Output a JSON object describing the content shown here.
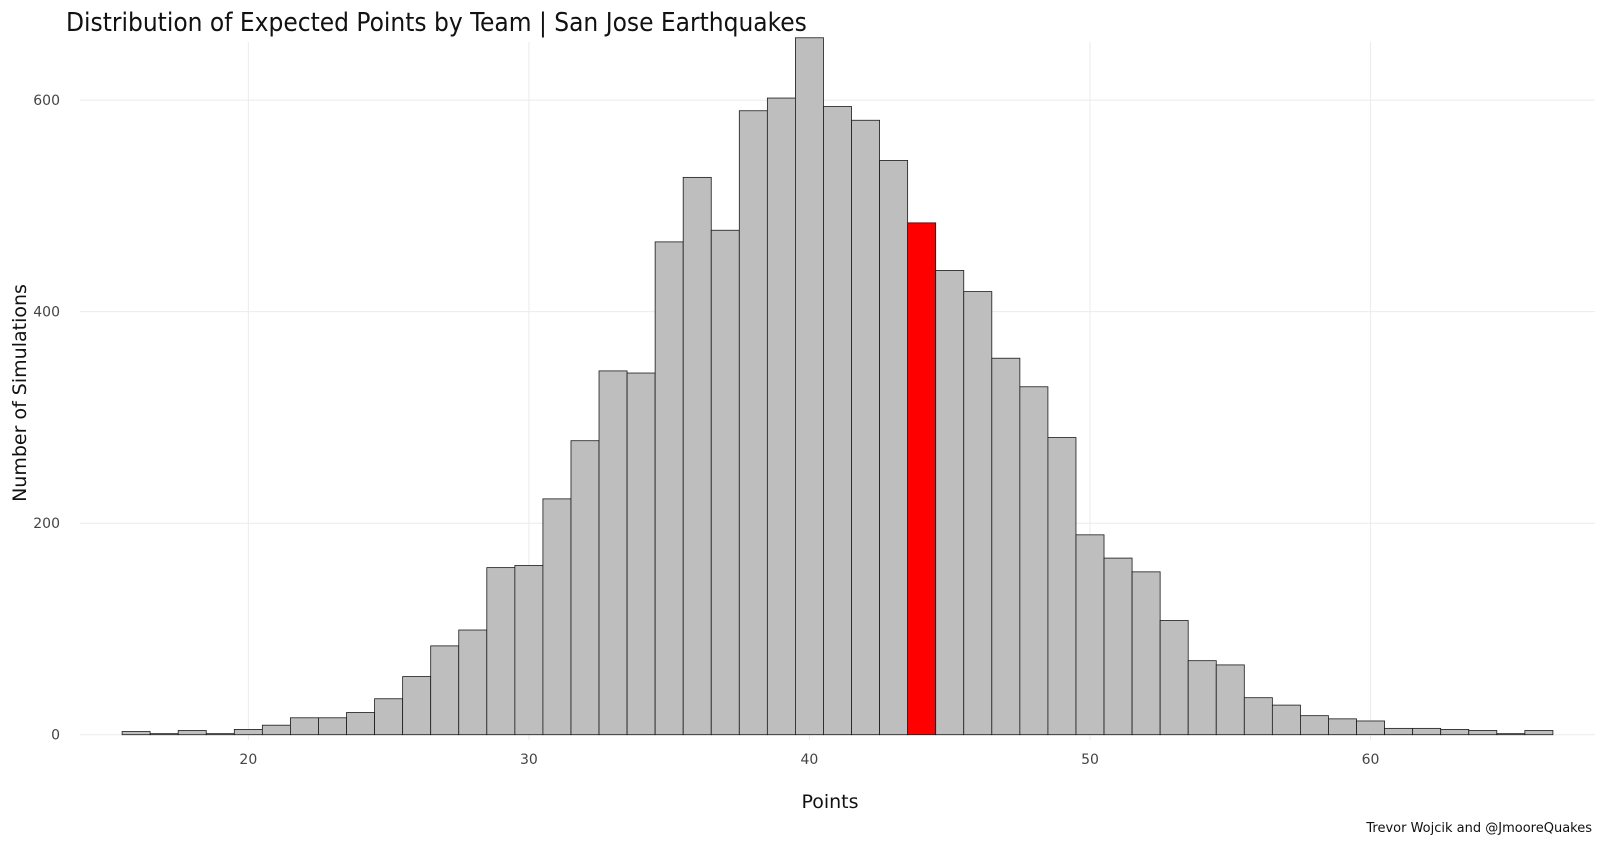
{
  "chart_data": {
    "type": "bar",
    "title": "Distribution of Expected Points by Team | San Jose Earthquakes",
    "xlabel": "Points",
    "ylabel": "Number of Simulations",
    "caption": "Trevor Wojcik and @JmooreQuakes",
    "xlim": [
      14,
      68
    ],
    "ylim": [
      -5,
      655
    ],
    "grid": true,
    "x_ticks": [
      20,
      30,
      40,
      50,
      60
    ],
    "y_ticks": [
      0,
      200,
      400,
      600
    ],
    "bin_width": 1,
    "bins": [
      {
        "center": 16,
        "value": 3
      },
      {
        "center": 17,
        "value": 1
      },
      {
        "center": 18,
        "value": 4
      },
      {
        "center": 19,
        "value": 1
      },
      {
        "center": 20,
        "value": 5
      },
      {
        "center": 21,
        "value": 9
      },
      {
        "center": 22,
        "value": 16
      },
      {
        "center": 23,
        "value": 16
      },
      {
        "center": 24,
        "value": 21
      },
      {
        "center": 25,
        "value": 34
      },
      {
        "center": 26,
        "value": 55
      },
      {
        "center": 27,
        "value": 84
      },
      {
        "center": 28,
        "value": 99
      },
      {
        "center": 29,
        "value": 158
      },
      {
        "center": 30,
        "value": 160
      },
      {
        "center": 31,
        "value": 223
      },
      {
        "center": 32,
        "value": 278
      },
      {
        "center": 33,
        "value": 344
      },
      {
        "center": 34,
        "value": 342
      },
      {
        "center": 35,
        "value": 466
      },
      {
        "center": 36,
        "value": 527
      },
      {
        "center": 37,
        "value": 477
      },
      {
        "center": 38,
        "value": 590
      },
      {
        "center": 39,
        "value": 602
      },
      {
        "center": 40,
        "value": 659
      },
      {
        "center": 41,
        "value": 594
      },
      {
        "center": 42,
        "value": 581
      },
      {
        "center": 43,
        "value": 543
      },
      {
        "center": 44,
        "value": 484,
        "highlight": true
      },
      {
        "center": 45,
        "value": 439
      },
      {
        "center": 46,
        "value": 419
      },
      {
        "center": 47,
        "value": 356
      },
      {
        "center": 48,
        "value": 329
      },
      {
        "center": 49,
        "value": 281
      },
      {
        "center": 50,
        "value": 189
      },
      {
        "center": 51,
        "value": 167
      },
      {
        "center": 52,
        "value": 154
      },
      {
        "center": 53,
        "value": 108
      },
      {
        "center": 54,
        "value": 70
      },
      {
        "center": 55,
        "value": 66
      },
      {
        "center": 56,
        "value": 35
      },
      {
        "center": 57,
        "value": 28
      },
      {
        "center": 58,
        "value": 18
      },
      {
        "center": 59,
        "value": 15
      },
      {
        "center": 60,
        "value": 13
      },
      {
        "center": 61,
        "value": 6
      },
      {
        "center": 62,
        "value": 6
      },
      {
        "center": 63,
        "value": 5
      },
      {
        "center": 64,
        "value": 4
      },
      {
        "center": 65,
        "value": 1
      },
      {
        "center": 66,
        "value": 4
      }
    ],
    "colors": {
      "bar_fill": "#bebebe",
      "highlight_fill": "#ff0000",
      "bar_stroke": "#1a1a1a",
      "grid": "#ebebeb",
      "text": "#111111",
      "tick_text": "#444444"
    }
  }
}
